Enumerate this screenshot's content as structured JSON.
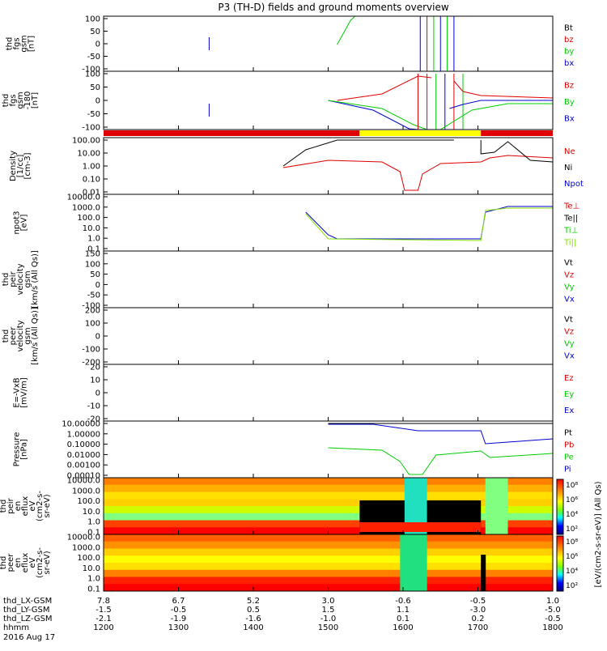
{
  "title": "P3 (TH-D) fields and ground moments overview",
  "chart_data": {
    "type": "line",
    "title": "P3 (TH-D) fields and ground moments overview",
    "x_label_rows": [
      {
        "label": "thd_LX-GSM",
        "values": [
          "7.8",
          "6.7",
          "5.2",
          "3.0",
          "-0.6",
          "-0.5",
          "1.0"
        ]
      },
      {
        "label": "thd_LY-GSM",
        "values": [
          "-1.5",
          "-0.5",
          "0.5",
          "1.5",
          "1.1",
          "-3.0",
          "-5.0"
        ]
      },
      {
        "label": "thd_LZ-GSM",
        "values": [
          "-2.1",
          "-1.9",
          "-1.6",
          "-1.0",
          "0.1",
          "0.2",
          "-0.5"
        ]
      },
      {
        "label": "hhmm",
        "values": [
          "1200",
          "1300",
          "1400",
          "1500",
          "1600",
          "1700",
          "1800"
        ]
      }
    ],
    "date": "2016 Aug 17",
    "xlim": [
      1200,
      1800
    ],
    "mode_bar_legend": [
      "red",
      "yellow"
    ],
    "panels": [
      {
        "ylabel": [
          "thd",
          "fgs",
          "gsm",
          "[nT]"
        ],
        "yticks": [
          "100",
          "50",
          "0",
          "-50",
          "-100"
        ],
        "scale": "linear",
        "ylim": [
          -100,
          100
        ],
        "legend": [
          {
            "name": "Bt",
            "color": "#000000"
          },
          {
            "name": "bz",
            "color": "#e00000"
          },
          {
            "name": "by",
            "color": "#00cc00"
          },
          {
            "name": "bx",
            "color": "#0000d0"
          }
        ]
      },
      {
        "ylabel": [
          "thd",
          "fgs",
          "gsm",
          "-180",
          "[nT]"
        ],
        "yticks": [
          "100",
          "50",
          "0",
          "-50",
          "-100"
        ],
        "scale": "linear",
        "ylim": [
          -120,
          110
        ],
        "legend": [
          {
            "name": "Bz",
            "color": "#e00000"
          },
          {
            "name": "By",
            "color": "#00cc00"
          },
          {
            "name": "Bx",
            "color": "#0000d0"
          }
        ]
      },
      {
        "ylabel": [
          "Density",
          "[1/cc]",
          "[cm-3]"
        ],
        "yticks": [
          "100.00",
          "10.00",
          "1.00",
          "0.10",
          "0.01"
        ],
        "scale": "log",
        "legend": [
          {
            "name": "Ne",
            "color": "#e00000"
          },
          {
            "name": "Ni",
            "color": "#000000"
          },
          {
            "name": "Npot",
            "color": "#0000d0"
          }
        ]
      },
      {
        "ylabel": [
          "npot3",
          "[eV]"
        ],
        "yticks": [
          "10000.0",
          "1000.0",
          "100.0",
          "10.0",
          "1.0",
          "0.1"
        ],
        "scale": "log",
        "legend": [
          {
            "name": "Te⊥",
            "color": "#e00000"
          },
          {
            "name": "Te||",
            "color": "#000000"
          },
          {
            "name": "Ti⊥",
            "color": "#00cc00"
          },
          {
            "name": "Ti||",
            "color": "#80e000"
          }
        ]
      },
      {
        "ylabel": [
          "thd",
          "peir",
          "velocity",
          "gsm",
          "[km/s (All Qs)]"
        ],
        "yticks": [
          "150",
          "100",
          "50",
          "0",
          "-50",
          "-100"
        ],
        "scale": "linear",
        "ylim": [
          -120,
          150
        ],
        "legend": [
          {
            "name": "Vt",
            "color": "#000000"
          },
          {
            "name": "Vz",
            "color": "#e00000"
          },
          {
            "name": "Vy",
            "color": "#00cc00"
          },
          {
            "name": "Vx",
            "color": "#0000d0"
          }
        ]
      },
      {
        "ylabel": [
          "thd",
          "peer",
          "velocity",
          "gsm",
          "[km/s (All Qs)]"
        ],
        "yticks": [
          "200",
          "100",
          "0",
          "-100",
          "-200"
        ],
        "scale": "linear",
        "ylim": [
          -200,
          200
        ],
        "legend": [
          {
            "name": "Vt",
            "color": "#000000"
          },
          {
            "name": "Vz",
            "color": "#e00000"
          },
          {
            "name": "Vy",
            "color": "#00cc00"
          },
          {
            "name": "Vx",
            "color": "#0000d0"
          }
        ]
      },
      {
        "ylabel": [
          "E=-VxB",
          "[mV/m]"
        ],
        "yticks": [
          "20",
          "10",
          "0",
          "-10",
          "-20"
        ],
        "scale": "linear",
        "ylim": [
          -20,
          20
        ],
        "legend": [
          {
            "name": "Ez",
            "color": "#e00000"
          },
          {
            "name": "Ey",
            "color": "#00cc00"
          },
          {
            "name": "Ex",
            "color": "#0000d0"
          }
        ]
      },
      {
        "ylabel": [
          "Pressure",
          "[nPa]"
        ],
        "yticks": [
          "10.00000",
          "1.00000",
          "0.10000",
          "0.01000",
          "0.00100",
          "0.00010"
        ],
        "scale": "log",
        "legend": [
          {
            "name": "Pt",
            "color": "#000000"
          },
          {
            "name": "Pb",
            "color": "#e00000"
          },
          {
            "name": "Pe",
            "color": "#00cc00"
          },
          {
            "name": "Pi",
            "color": "#0000d0"
          }
        ]
      },
      {
        "ylabel": [
          "thd",
          "peir",
          "en",
          "eflux",
          "eV",
          "(cm2-s-",
          "sr-eV)"
        ],
        "yticks": [
          "10000.0",
          "1000.0",
          "100.0",
          "10.0",
          "1.0",
          "0.1"
        ],
        "scale": "log",
        "type": "spectrogram"
      },
      {
        "ylabel": [
          "thd",
          "peer",
          "en",
          "eflux",
          "eV",
          "(cm2-s-",
          "sr-eV)"
        ],
        "yticks": [
          "10000.0",
          "1000.0",
          "100.0",
          "10.0",
          "1.0",
          "0.1"
        ],
        "scale": "log",
        "type": "spectrogram"
      }
    ],
    "colorbar": {
      "label": "[eV/(cm2-s-sr-eV)] (All Qs)",
      "ticks": [
        "10⁸",
        "10⁶",
        "10⁴",
        "10²",
        "10⁸",
        "10⁶",
        "10⁴",
        "10²"
      ]
    }
  }
}
